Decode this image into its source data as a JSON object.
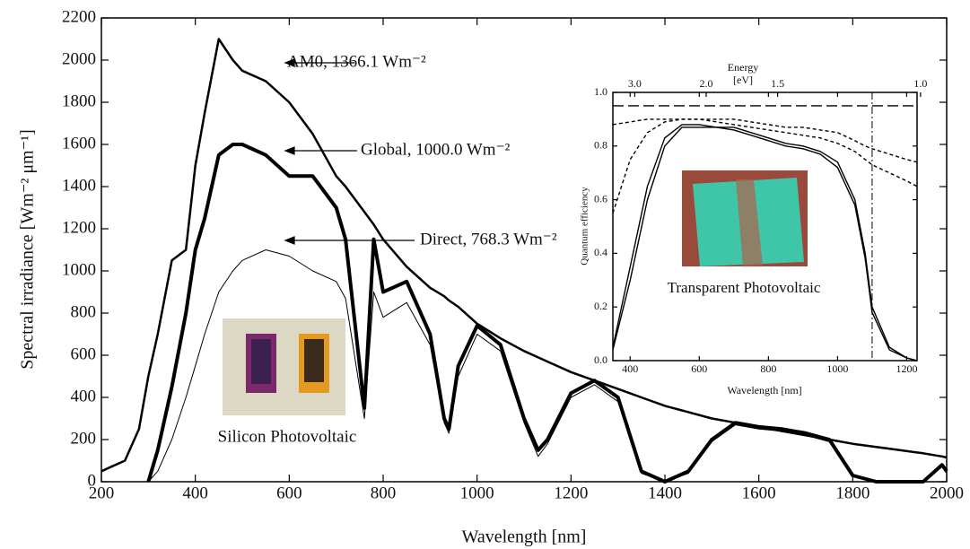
{
  "chart_data": [
    {
      "type": "line",
      "x_label": "Wavelength [nm]",
      "y_label": "Spectral irradiance [Wm⁻² μm⁻¹]",
      "annotations": [
        "AM0, 1366.1 Wm⁻²",
        "Global, 1000.0 Wm⁻²",
        "Direct, 768.3 Wm⁻²",
        "Silicon Photovoltaic"
      ],
      "x": [
        200,
        250,
        280,
        300,
        320,
        350,
        380,
        400,
        420,
        450,
        480,
        500,
        550,
        600,
        650,
        700,
        720,
        760,
        780,
        800,
        850,
        900,
        930,
        940,
        960,
        1000,
        1050,
        1100,
        1130,
        1150,
        1200,
        1250,
        1300,
        1350,
        1400,
        1450,
        1500,
        1550,
        1600,
        1650,
        1700,
        1750,
        1800,
        1850,
        1900,
        1950,
        1990,
        2000
      ],
      "series": [
        {
          "color": "#000000",
          "line_width": 2.5,
          "values": [
            50,
            100,
            250,
            500,
            700,
            1050,
            1100,
            1500,
            1750,
            2100,
            2000,
            1950,
            1900,
            1800,
            1650,
            1450,
            1400,
            1280,
            1220,
            1150,
            1020,
            920,
            880,
            860,
            830,
            750,
            680,
            620,
            590,
            570,
            520,
            480,
            440,
            400,
            360,
            330,
            300,
            280,
            260,
            240,
            220,
            200,
            180,
            165,
            150,
            135,
            120,
            115
          ]
        },
        {
          "color": "#000000",
          "line_width": 4,
          "values": [
            null,
            null,
            null,
            0,
            150,
            450,
            800,
            1100,
            1250,
            1550,
            1600,
            1600,
            1550,
            1450,
            1450,
            1300,
            1150,
            350,
            1150,
            900,
            950,
            700,
            300,
            250,
            550,
            740,
            650,
            300,
            150,
            200,
            420,
            480,
            400,
            50,
            0,
            50,
            200,
            280,
            260,
            250,
            230,
            200,
            30,
            0,
            0,
            0,
            80,
            50
          ]
        },
        {
          "color": "#000000",
          "line_width": 1,
          "values": [
            null,
            null,
            null,
            0,
            50,
            200,
            400,
            550,
            700,
            900,
            1000,
            1050,
            1100,
            1070,
            1000,
            950,
            870,
            300,
            900,
            780,
            850,
            650,
            280,
            230,
            500,
            700,
            620,
            280,
            120,
            180,
            400,
            460,
            380,
            40,
            0,
            40,
            190,
            270,
            250,
            240,
            220,
            190,
            25,
            0,
            0,
            0,
            70,
            40
          ]
        }
      ],
      "xlim": [
        200,
        2000
      ],
      "xticks": [
        200,
        400,
        600,
        800,
        1000,
        1200,
        1400,
        1600,
        1800,
        2000
      ],
      "ylim": [
        0,
        2200
      ],
      "yticks": [
        0,
        200,
        400,
        600,
        800,
        1000,
        1200,
        1400,
        1600,
        1800,
        2000,
        2200
      ]
    },
    {
      "type": "line",
      "x_label": "Wavelength [nm]",
      "y_label": "Quantum efficiency",
      "x2_label": "Energy",
      "x2_unit": "[eV]",
      "caption": "Transparent Photovoltaic",
      "x": [
        350,
        400,
        450,
        500,
        550,
        600,
        650,
        700,
        750,
        800,
        850,
        900,
        950,
        1000,
        1050,
        1080,
        1100,
        1150,
        1200,
        1230
      ],
      "series": [
        {
          "color": "#000000",
          "dash": "12,5",
          "values": [
            0.95,
            0.95,
            0.95,
            0.95,
            0.95,
            0.95,
            0.95,
            0.95,
            0.95,
            0.95,
            0.95,
            0.95,
            0.95,
            0.95,
            0.95,
            0.95,
            0.95,
            0.95,
            0.95,
            0.95
          ]
        },
        {
          "color": "#000000",
          "dash": "4,3",
          "values": [
            0.88,
            0.89,
            0.9,
            0.9,
            0.9,
            0.9,
            0.9,
            0.9,
            0.89,
            0.88,
            0.87,
            0.87,
            0.86,
            0.85,
            0.82,
            0.8,
            0.79,
            0.77,
            0.75,
            0.74
          ]
        },
        {
          "color": "#000000",
          "dash": "4,3",
          "values": [
            0.55,
            0.75,
            0.85,
            0.89,
            0.9,
            0.9,
            0.89,
            0.88,
            0.87,
            0.86,
            0.85,
            0.84,
            0.83,
            0.81,
            0.78,
            0.75,
            0.73,
            0.7,
            0.67,
            0.65
          ]
        },
        {
          "color": "#000000",
          "values": [
            0.05,
            0.35,
            0.65,
            0.83,
            0.88,
            0.88,
            0.87,
            0.87,
            0.85,
            0.83,
            0.81,
            0.8,
            0.78,
            0.74,
            0.6,
            0.4,
            0.2,
            0.05,
            0.01,
            0.0
          ]
        },
        {
          "color": "#000000",
          "values": [
            0.04,
            0.3,
            0.6,
            0.8,
            0.87,
            0.87,
            0.87,
            0.86,
            0.84,
            0.82,
            0.8,
            0.79,
            0.77,
            0.72,
            0.58,
            0.38,
            0.18,
            0.04,
            0.01,
            0.0
          ]
        }
      ],
      "vline": 1100,
      "xlim": [
        350,
        1230
      ],
      "xticks": [
        400,
        600,
        800,
        1000,
        1200
      ],
      "x2ticks": [
        {
          "value": 3,
          "label": "3.0"
        },
        {
          "value": 2,
          "label": "2.0"
        },
        {
          "value": 1.5,
          "label": "1.5"
        },
        {
          "value": 1,
          "label": "1.0"
        }
      ],
      "ylim": [
        0,
        1
      ],
      "yticks": [
        {
          "value": 0,
          "label": "0.0"
        },
        0.2,
        0.4,
        0.6,
        {
          "value": 1,
          "label": "1.0"
        },
        0.8
      ]
    }
  ]
}
